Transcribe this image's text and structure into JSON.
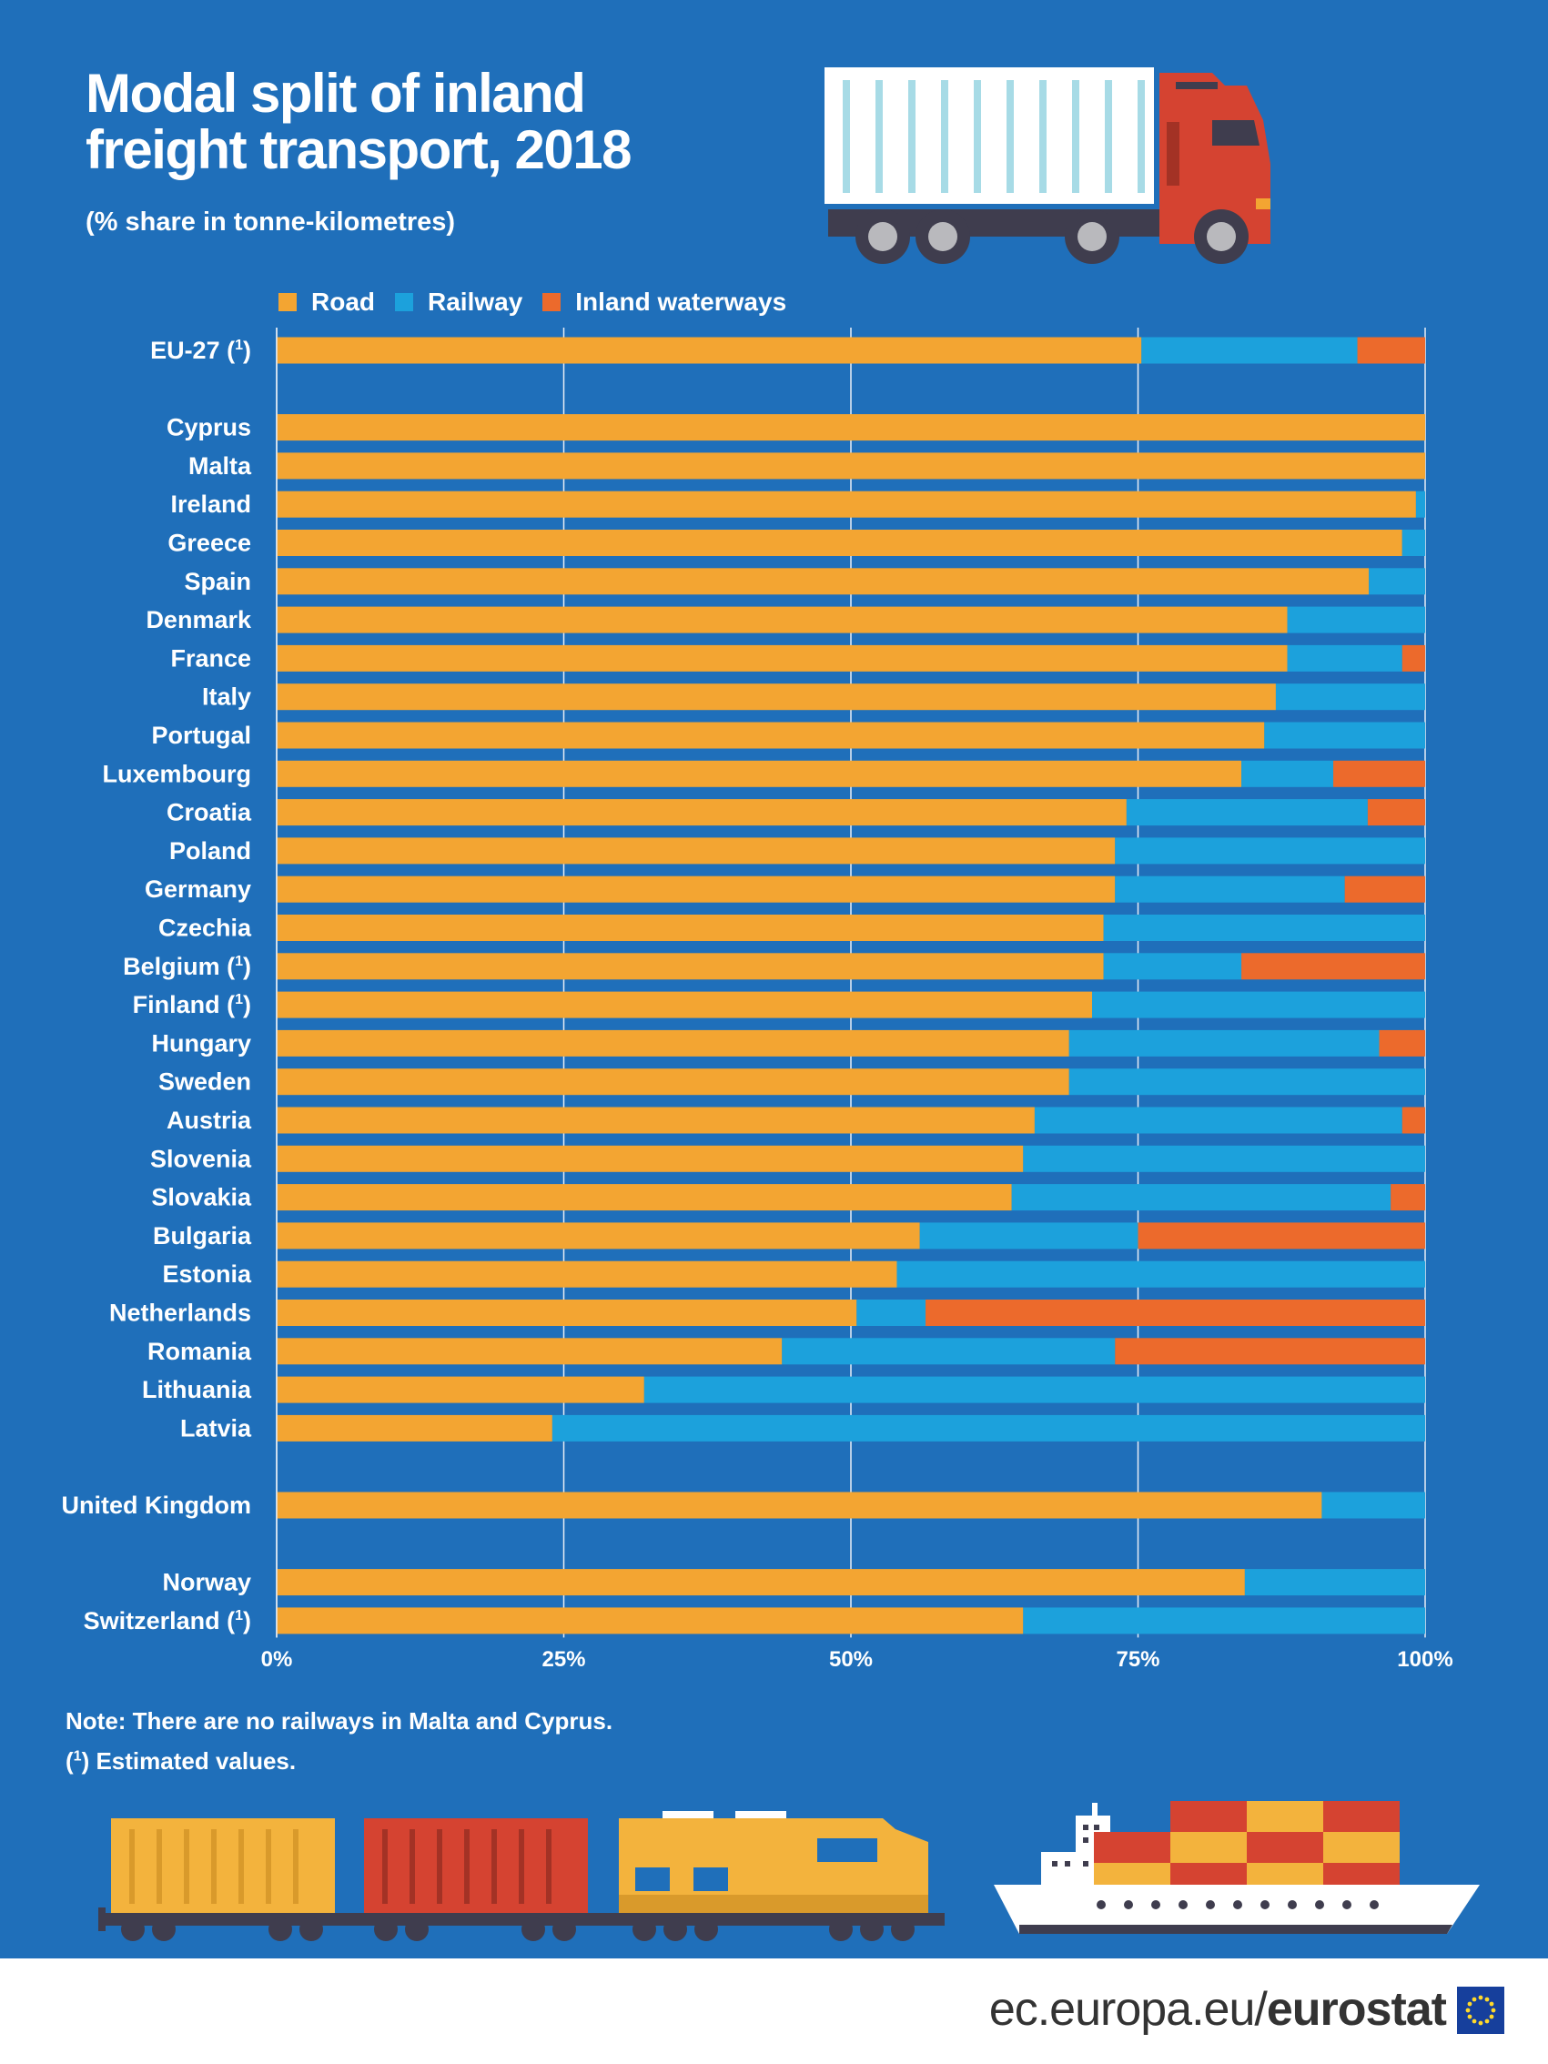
{
  "header": {
    "title_line1": "Modal split of inland",
    "title_line2": "freight transport, 2018",
    "subtitle": "(% share in tonne-kilometres)"
  },
  "legend": {
    "road": "Road",
    "railway": "Railway",
    "waterways": "Inland waterways"
  },
  "colors": {
    "background": "#1f6fba",
    "road": "#f3a532",
    "railway": "#1ca1dc",
    "waterways": "#ec6a2c"
  },
  "notes": {
    "line1": "Note: There are no railways in Malta and Cyprus.",
    "line2_prefix": "(",
    "line2_sup": "1",
    "line2_suffix": ") Estimated values."
  },
  "footer": {
    "brand_prefix": "ec.europa.eu/",
    "brand_bold": "eurostat"
  },
  "icons": [
    "truck-icon",
    "train-icon",
    "ship-icon",
    "eu-flag-icon"
  ],
  "chart_data": {
    "type": "bar",
    "orientation": "horizontal",
    "stacked": true,
    "xlabel": "",
    "ylabel": "",
    "xlim": [
      0,
      100
    ],
    "xticks": [
      "0%",
      "25%",
      "50%",
      "75%",
      "100%"
    ],
    "grid": true,
    "legend_position": "top",
    "categories": [
      {
        "name": "EU-27",
        "note": "1"
      },
      {
        "name": "Cyprus"
      },
      {
        "name": "Malta"
      },
      {
        "name": "Ireland"
      },
      {
        "name": "Greece"
      },
      {
        "name": "Spain"
      },
      {
        "name": "Denmark"
      },
      {
        "name": "France"
      },
      {
        "name": "Italy"
      },
      {
        "name": "Portugal"
      },
      {
        "name": "Luxembourg"
      },
      {
        "name": "Croatia"
      },
      {
        "name": "Poland"
      },
      {
        "name": "Germany"
      },
      {
        "name": "Czechia"
      },
      {
        "name": "Belgium",
        "note": "1"
      },
      {
        "name": "Finland",
        "note": "1"
      },
      {
        "name": "Hungary"
      },
      {
        "name": "Sweden"
      },
      {
        "name": "Austria"
      },
      {
        "name": "Slovenia"
      },
      {
        "name": "Slovakia"
      },
      {
        "name": "Bulgaria"
      },
      {
        "name": "Estonia"
      },
      {
        "name": "Netherlands"
      },
      {
        "name": "Romania"
      },
      {
        "name": "Lithuania"
      },
      {
        "name": "Latvia"
      },
      {
        "name": "United Kingdom"
      },
      {
        "name": "Norway"
      },
      {
        "name": "Switzerland",
        "note": "1"
      }
    ],
    "groups": [
      1,
      27,
      1,
      2
    ],
    "series": [
      {
        "name": "Road",
        "values": [
          75.3,
          100,
          100,
          99.2,
          98,
          95.1,
          88,
          88,
          87,
          86,
          84,
          74,
          73,
          73,
          72,
          72,
          71,
          69,
          69,
          66,
          65,
          64,
          56,
          54,
          50.5,
          44,
          32,
          24,
          91,
          84.3,
          65
        ]
      },
      {
        "name": "Railway",
        "values": [
          18.8,
          0,
          0,
          0.8,
          2,
          4.9,
          12,
          10,
          13,
          14,
          8,
          21,
          27,
          20,
          28,
          12,
          29,
          27,
          31,
          32,
          35,
          33,
          19,
          46,
          6,
          29,
          68,
          76,
          9,
          15.7,
          35
        ]
      },
      {
        "name": "Inland waterways",
        "values": [
          5.9,
          0,
          0,
          0,
          0,
          0,
          0,
          2,
          0,
          0,
          8,
          5,
          0,
          7,
          0,
          16,
          0,
          4,
          0,
          2,
          0,
          3,
          25,
          0,
          43.5,
          27,
          0,
          0,
          0,
          0,
          0
        ]
      }
    ]
  }
}
